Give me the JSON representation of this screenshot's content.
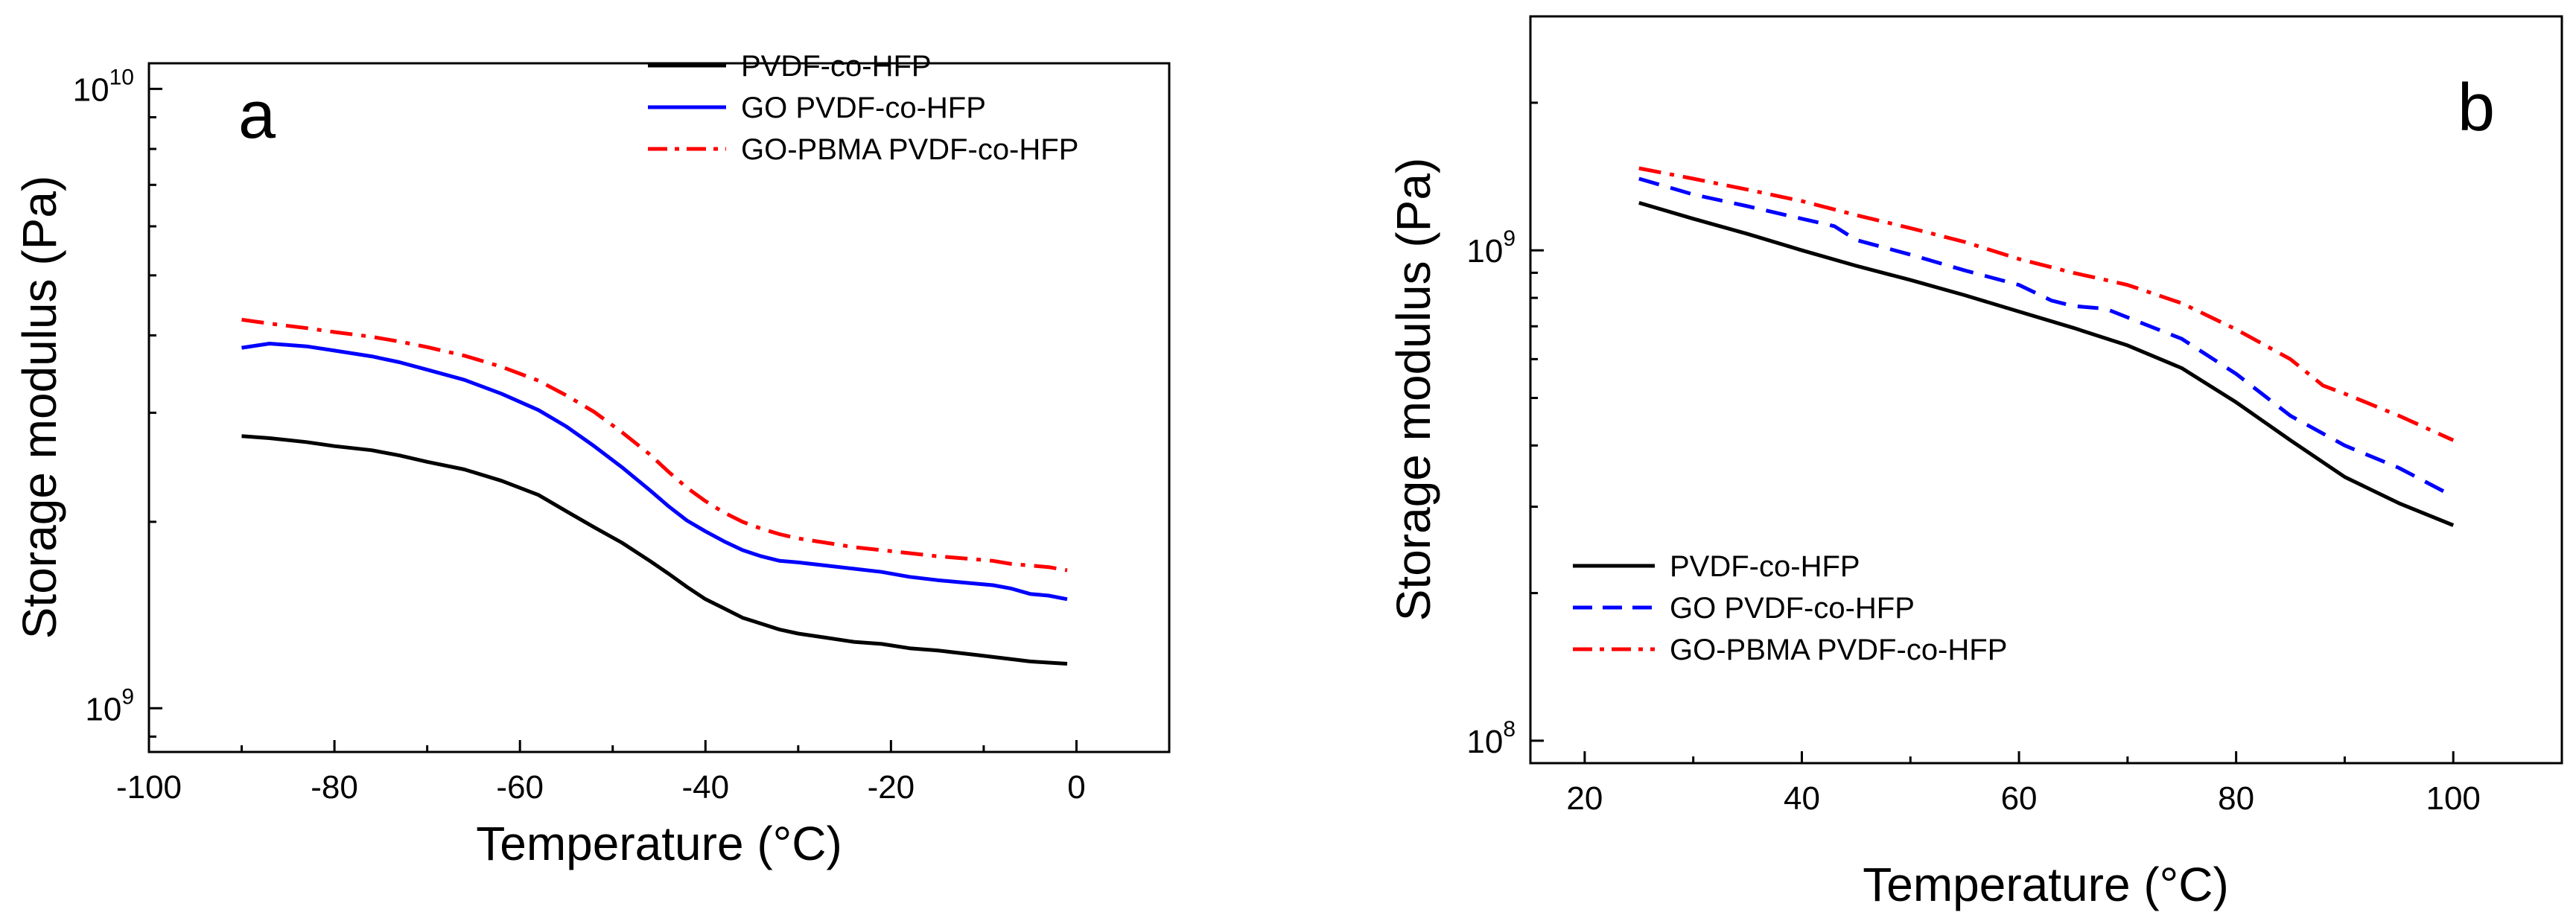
{
  "chart_data": [
    {
      "type": "line",
      "panel": "a",
      "xlabel": "Temperature (°C)",
      "ylabel": "Storage modulus (Pa)",
      "xlim": [
        -100,
        10
      ],
      "ylim": [
        850000000,
        11000000000
      ],
      "yscale": "log",
      "xticks": [
        -100,
        -80,
        -60,
        -40,
        -20,
        0
      ],
      "yticks": [
        {
          "value": 1000000000,
          "base": "10",
          "exp": "9"
        },
        {
          "value": 10000000000,
          "base": "10",
          "exp": "10"
        }
      ],
      "legend_position": "top-right",
      "series": [
        {
          "name": "PVDF-co-HFP",
          "color": "#000000",
          "dash": "solid",
          "x": [
            -90,
            -87,
            -83,
            -80,
            -76,
            -73,
            -70,
            -66,
            -62,
            -58,
            -55,
            -52,
            -49,
            -46,
            -44,
            -42,
            -40,
            -38,
            -36,
            -34,
            -32,
            -30,
            -27,
            -24,
            -21,
            -18,
            -15,
            -13,
            -11,
            -9,
            -7,
            -5,
            -3,
            -1
          ],
          "y": [
            2750000000.0,
            2730000000.0,
            2690000000.0,
            2650000000.0,
            2610000000.0,
            2560000000.0,
            2500000000.0,
            2430000000.0,
            2330000000.0,
            2210000000.0,
            2080000000.0,
            1960000000.0,
            1850000000.0,
            1730000000.0,
            1650000000.0,
            1570000000.0,
            1500000000.0,
            1450000000.0,
            1400000000.0,
            1370000000.0,
            1340000000.0,
            1320000000.0,
            1300000000.0,
            1280000000.0,
            1270000000.0,
            1250000000.0,
            1240000000.0,
            1230000000.0,
            1220000000.0,
            1210000000.0,
            1200000000.0,
            1190000000.0,
            1185000000.0,
            1180000000.0
          ]
        },
        {
          "name": "GO PVDF-co-HFP",
          "color": "#0000ff",
          "dash": "solid",
          "x": [
            -90,
            -87,
            -83,
            -80,
            -76,
            -73,
            -70,
            -66,
            -62,
            -58,
            -55,
            -52,
            -49,
            -46,
            -44,
            -42,
            -40,
            -38,
            -36,
            -34,
            -32,
            -30,
            -27,
            -24,
            -21,
            -18,
            -15,
            -13,
            -11,
            -9,
            -7,
            -5,
            -3,
            -1
          ],
          "y": [
            3820000000.0,
            3880000000.0,
            3840000000.0,
            3780000000.0,
            3700000000.0,
            3620000000.0,
            3520000000.0,
            3390000000.0,
            3220000000.0,
            3030000000.0,
            2850000000.0,
            2650000000.0,
            2450000000.0,
            2250000000.0,
            2120000000.0,
            2010000000.0,
            1930000000.0,
            1860000000.0,
            1800000000.0,
            1760000000.0,
            1730000000.0,
            1720000000.0,
            1700000000.0,
            1680000000.0,
            1660000000.0,
            1630000000.0,
            1610000000.0,
            1600000000.0,
            1590000000.0,
            1580000000.0,
            1560000000.0,
            1530000000.0,
            1520000000.0,
            1500000000.0
          ]
        },
        {
          "name": "GO-PBMA PVDF-co-HFP",
          "color": "#ff0000",
          "dash": "dashdot",
          "x": [
            -90,
            -87,
            -83,
            -80,
            -76,
            -73,
            -70,
            -66,
            -62,
            -58,
            -55,
            -52,
            -49,
            -46,
            -44,
            -42,
            -40,
            -38,
            -36,
            -34,
            -32,
            -30,
            -27,
            -24,
            -21,
            -18,
            -15,
            -13,
            -11,
            -9,
            -7,
            -5,
            -3,
            -1
          ],
          "y": [
            4240000000.0,
            4180000000.0,
            4110000000.0,
            4050000000.0,
            3980000000.0,
            3910000000.0,
            3830000000.0,
            3710000000.0,
            3560000000.0,
            3380000000.0,
            3200000000.0,
            3010000000.0,
            2790000000.0,
            2570000000.0,
            2410000000.0,
            2270000000.0,
            2160000000.0,
            2070000000.0,
            2000000000.0,
            1950000000.0,
            1910000000.0,
            1880000000.0,
            1850000000.0,
            1820000000.0,
            1800000000.0,
            1780000000.0,
            1760000000.0,
            1750000000.0,
            1740000000.0,
            1730000000.0,
            1710000000.0,
            1700000000.0,
            1690000000.0,
            1670000000.0
          ]
        }
      ]
    },
    {
      "type": "line",
      "panel": "b",
      "xlabel": "Temperature (°C)",
      "ylabel": "Storage modulus (Pa)",
      "xlim": [
        15,
        110
      ],
      "ylim": [
        90000000,
        3000000000
      ],
      "yscale": "log",
      "xticks": [
        20,
        40,
        60,
        80,
        100
      ],
      "yticks": [
        {
          "value": 100000000,
          "base": "10",
          "exp": "8"
        },
        {
          "value": 1000000000,
          "base": "10",
          "exp": "9"
        }
      ],
      "legend_position": "bottom-left",
      "series": [
        {
          "name": "PVDF-co-HFP",
          "color": "#000000",
          "dash": "solid",
          "x": [
            25,
            30,
            35,
            40,
            45,
            50,
            55,
            60,
            65,
            70,
            75,
            80,
            85,
            90,
            95,
            100
          ],
          "y": [
            1250000000.0,
            1160000000.0,
            1080000000.0,
            1000000000.0,
            930000000.0,
            870000000.0,
            810000000.0,
            750000000.0,
            695000000.0,
            640000000.0,
            575000000.0,
            490000000.0,
            410000000.0,
            345000000.0,
            305000000.0,
            275000000.0
          ]
        },
        {
          "name": "GO PVDF-co-HFP",
          "color": "#0000ff",
          "dash": "dashed",
          "x": [
            25,
            30,
            35,
            40,
            43,
            45,
            50,
            55,
            60,
            63,
            65,
            68,
            70,
            75,
            80,
            85,
            90,
            95,
            100
          ],
          "y": [
            1400000000.0,
            1300000000.0,
            1230000000.0,
            1160000000.0,
            1120000000.0,
            1050000000.0,
            980000000.0,
            910000000.0,
            850000000.0,
            790000000.0,
            770000000.0,
            760000000.0,
            730000000.0,
            660000000.0,
            560000000.0,
            460000000.0,
            400000000.0,
            360000000.0,
            315000000.0
          ]
        },
        {
          "name": "GO-PBMA PVDF-co-HFP",
          "color": "#ff0000",
          "dash": "dashdot",
          "x": [
            25,
            30,
            35,
            40,
            45,
            50,
            55,
            60,
            65,
            68,
            70,
            75,
            80,
            85,
            88,
            90,
            95,
            100
          ],
          "y": [
            1470000000.0,
            1400000000.0,
            1330000000.0,
            1260000000.0,
            1180000000.0,
            1110000000.0,
            1040000000.0,
            960000000.0,
            900000000.0,
            870000000.0,
            850000000.0,
            780000000.0,
            690000000.0,
            600000000.0,
            530000000.0,
            510000000.0,
            460000000.0,
            410000000.0
          ]
        }
      ]
    }
  ]
}
